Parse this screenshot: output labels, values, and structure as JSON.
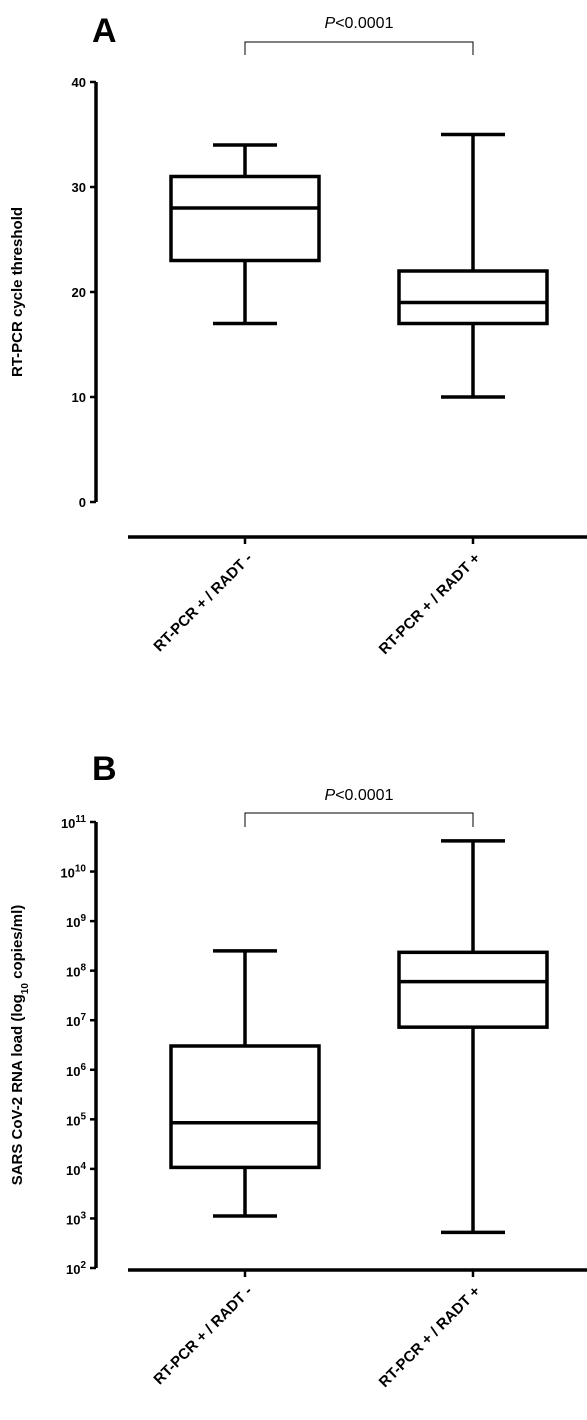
{
  "chart_data": [
    {
      "type": "box",
      "panel_label": "A",
      "ylabel": "RT-PCR cycle threshold",
      "ylim": [
        0,
        40
      ],
      "yticks": [
        "0",
        "10",
        "20",
        "30",
        "40"
      ],
      "categories": [
        "RT-PCR + / RADT -",
        "RT-PCR + / RADT +"
      ],
      "boxes": [
        {
          "min": 17,
          "q1": 23,
          "median": 28,
          "q3": 31,
          "max": 34
        },
        {
          "min": 10,
          "q1": 17,
          "median": 19,
          "q3": 22,
          "max": 35
        }
      ],
      "comparison": {
        "p_italic": "P",
        "p_rest": "<0.0001"
      }
    },
    {
      "type": "box",
      "panel_label": "B",
      "ylabel_pre": "SARS CoV-2 RNA load (log",
      "ylabel_sub": "10",
      "ylabel_post": " copies/ml)",
      "yscale": "log",
      "ylim_log10": [
        2,
        11
      ],
      "yticks": [
        {
          "base": "10",
          "exp": "2"
        },
        {
          "base": "10",
          "exp": "3"
        },
        {
          "base": "10",
          "exp": "4"
        },
        {
          "base": "10",
          "exp": "5"
        },
        {
          "base": "10",
          "exp": "6"
        },
        {
          "base": "10",
          "exp": "7"
        },
        {
          "base": "10",
          "exp": "8"
        },
        {
          "base": "10",
          "exp": "9"
        },
        {
          "base": "10",
          "exp": "10"
        },
        {
          "base": "10",
          "exp": "11"
        }
      ],
      "categories": [
        "RT-PCR + / RADT -",
        "RT-PCR + / RADT +"
      ],
      "boxes_log10": [
        {
          "min": 3.05,
          "q1": 4.03,
          "median": 4.93,
          "q3": 6.48,
          "max": 8.4
        },
        {
          "min": 2.72,
          "q1": 6.86,
          "median": 7.78,
          "q3": 8.37,
          "max": 10.62
        }
      ],
      "comparison": {
        "p_italic": "P",
        "p_rest": "<0.0001"
      }
    }
  ]
}
